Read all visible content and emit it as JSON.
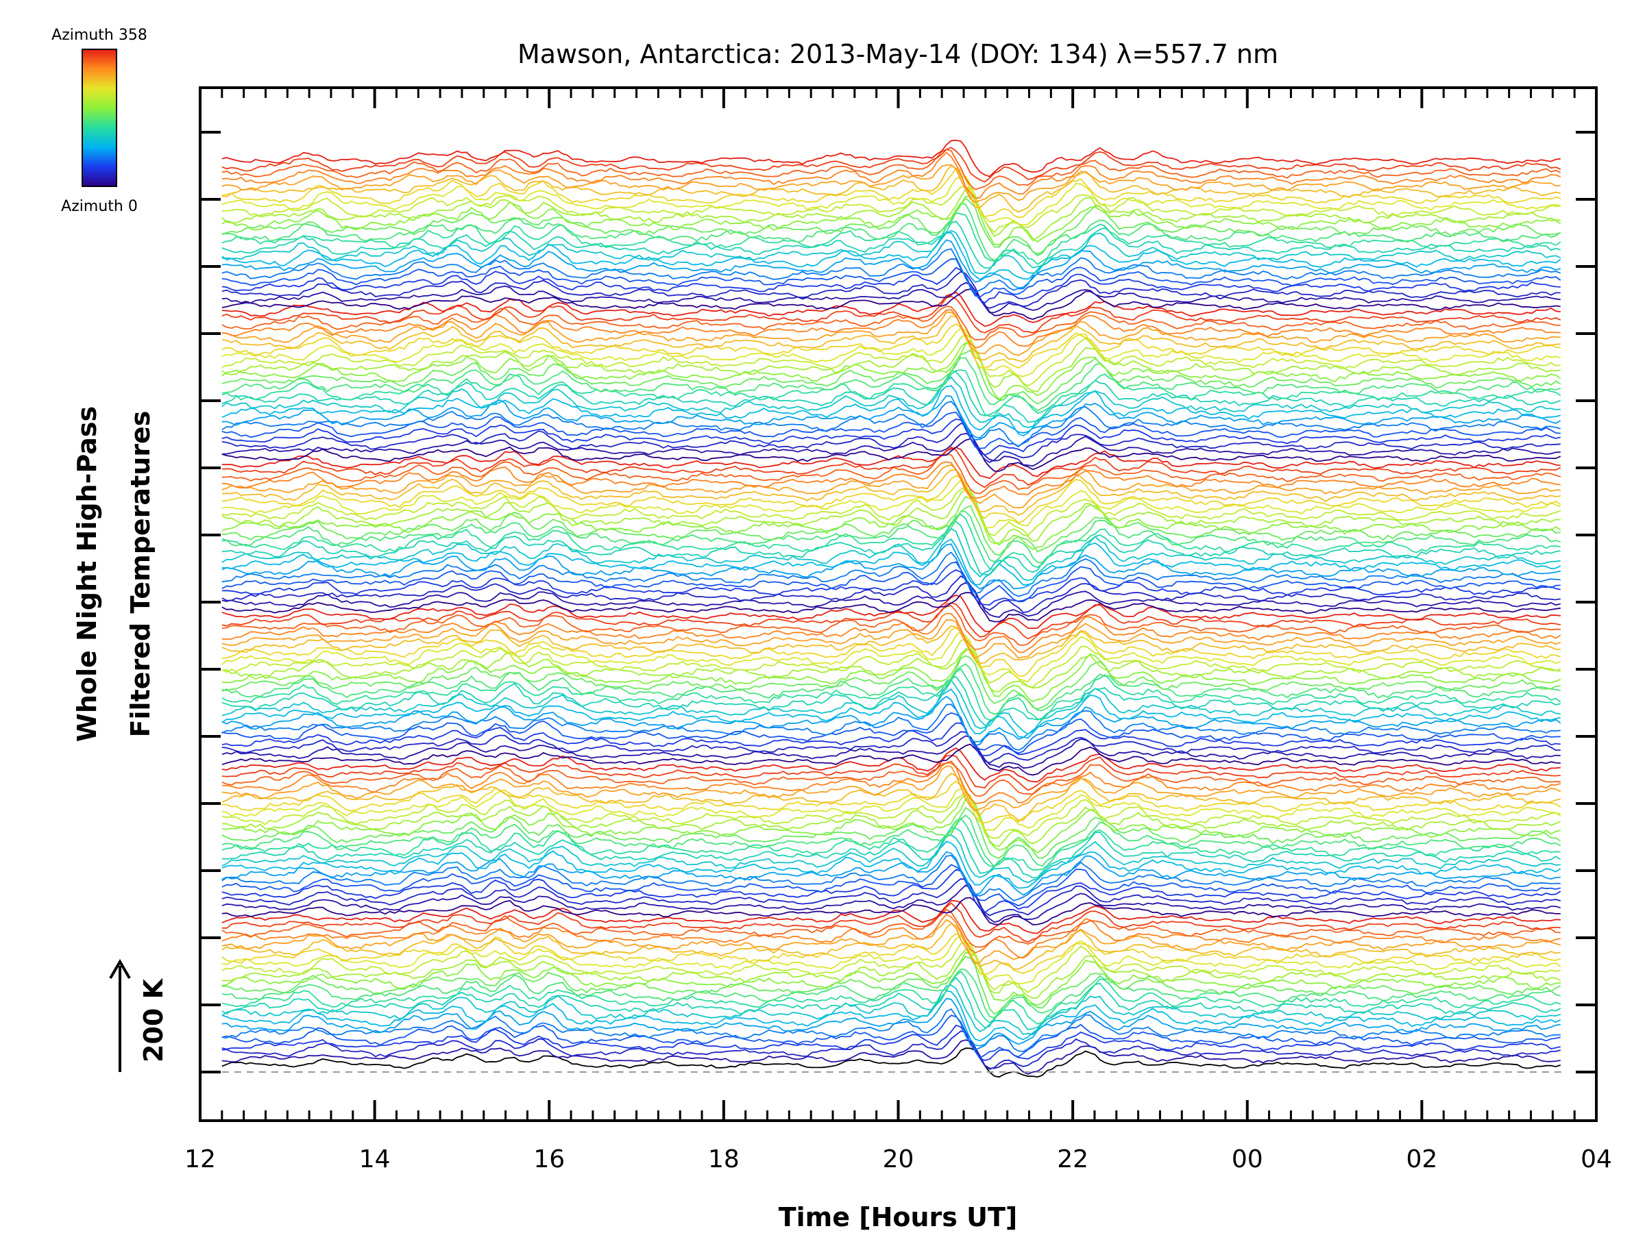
{
  "chart_data": {
    "type": "line",
    "title": "Mawson, Antarctica: 2013-May-14 (DOY: 134) λ=557.7 nm",
    "xlabel": "Time [Hours UT]",
    "ylabel": [
      "Whole Night High-Pass",
      "Filtered Temperatures"
    ],
    "x_ticks": [
      "12",
      "14",
      "16",
      "18",
      "20",
      "22",
      "00",
      "02",
      "04"
    ],
    "x_range_hours_ut": [
      12,
      28
    ],
    "data_x_range_hours_ut": [
      12.25,
      27.6
    ],
    "scale_bar_label": "200 K",
    "colorbar": {
      "top_label": "Azimuth 358",
      "bottom_label": "Azimuth 0",
      "colors": [
        "#2b0088",
        "#1a3cf0",
        "#00b4f0",
        "#28dca0",
        "#8cf03c",
        "#e6e628",
        "#ff8c1e",
        "#e61e14"
      ]
    },
    "series_groups": 6,
    "traces_per_group": 24,
    "baseline_dashed": true,
    "features": [
      {
        "x": 13.3,
        "amplitude": 0.6
      },
      {
        "x": 14.6,
        "amplitude": 0.6
      },
      {
        "x": 15.0,
        "amplitude": 0.9
      },
      {
        "x": 15.5,
        "amplitude": 1.0
      },
      {
        "x": 16.0,
        "amplitude": 0.9
      },
      {
        "x": 19.5,
        "amplitude": 0.5
      },
      {
        "x": 20.1,
        "amplitude": 0.7
      },
      {
        "x": 20.7,
        "amplitude": 1.9
      },
      {
        "x": 21.0,
        "amplitude": -1.3
      },
      {
        "x": 21.5,
        "amplitude": -1.2
      },
      {
        "x": 22.2,
        "amplitude": 1.2
      },
      {
        "x": 22.8,
        "amplitude": 0.5
      }
    ]
  }
}
